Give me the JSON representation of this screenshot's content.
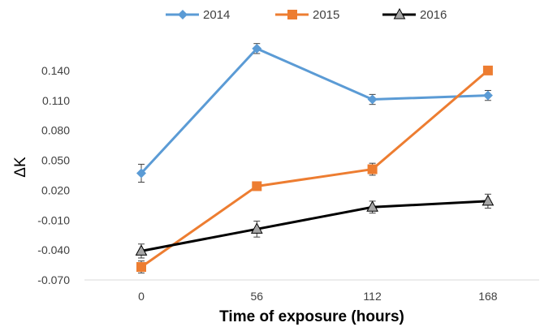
{
  "chart_data": {
    "type": "line",
    "x": [
      0,
      56,
      112,
      168
    ],
    "x_tick_labels": [
      "0",
      "56",
      "112",
      "168"
    ],
    "y_ticks": [
      -0.07,
      -0.04,
      -0.01,
      0.02,
      0.05,
      0.08,
      0.11,
      0.14
    ],
    "y_tick_labels": [
      "-0.070",
      "-0.040",
      "-0.010",
      "0.020",
      "0.050",
      "0.080",
      "0.110",
      "0.140"
    ],
    "ylim": [
      -0.07,
      0.17
    ],
    "xlabel": "Time of exposure (hours)",
    "ylabel": "ΔK",
    "legend_position": "top",
    "grid": false,
    "series": [
      {
        "name": "2014",
        "color": "#5b9bd5",
        "marker": "diamond",
        "values": [
          0.037,
          0.162,
          0.111,
          0.115
        ],
        "errors": [
          0.009,
          0.005,
          0.005,
          0.005
        ]
      },
      {
        "name": "2015",
        "color": "#ed7d31",
        "marker": "square",
        "values": [
          -0.057,
          0.024,
          0.041,
          0.14
        ],
        "errors": [
          0.006,
          0.004,
          0.006,
          0.004
        ]
      },
      {
        "name": "2016",
        "color": "#000000",
        "marker": "triangle",
        "values": [
          -0.041,
          -0.019,
          0.003,
          0.009
        ],
        "errors": [
          0.007,
          0.008,
          0.006,
          0.007
        ]
      }
    ]
  }
}
